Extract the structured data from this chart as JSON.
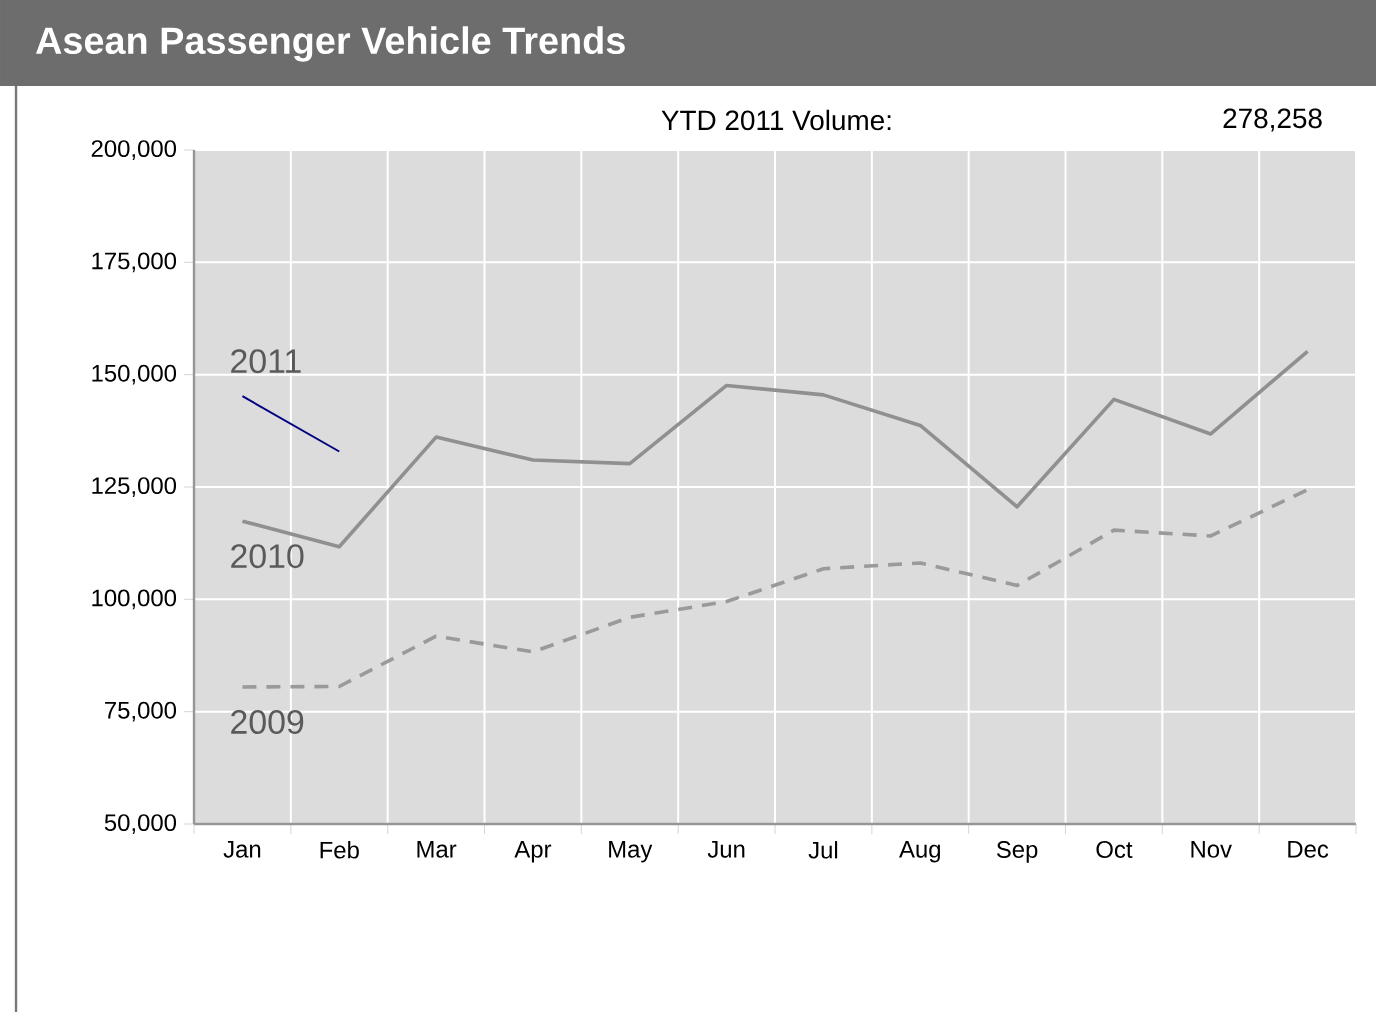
{
  "chart_data": {
    "type": "line",
    "title": "Asean Passenger Vehicle Trends",
    "annotations": [
      "YTD 2011 Volume:",
      "278,258"
    ],
    "categories": [
      "Jan",
      "Feb",
      "Mar",
      "Apr",
      "May",
      "Jun",
      "Jul",
      "Aug",
      "Sep",
      "Oct",
      "Nov",
      "Dec"
    ],
    "series": [
      {
        "name": "2011",
        "color": "#000080",
        "line_style": "solid",
        "values": [
          145200,
          132900,
          null,
          null,
          null,
          null,
          null,
          null,
          null,
          null,
          null,
          null
        ]
      },
      {
        "name": "2010",
        "color": "#909090",
        "line_style": "solid",
        "values": [
          117400,
          111700,
          136100,
          131000,
          130200,
          147600,
          145500,
          138700,
          120600,
          144500,
          136800,
          155200
        ]
      },
      {
        "name": "2009",
        "color": "#9a9a9a",
        "line_style": "dashed",
        "values": [
          80500,
          80600,
          91800,
          88300,
          96000,
          99500,
          106800,
          108100,
          103100,
          115400,
          114100,
          124400
        ]
      }
    ],
    "ylim": [
      50000,
      200000
    ],
    "yticks": [
      {
        "value": 50000,
        "label": "50,000"
      },
      {
        "value": 75000,
        "label": "75,000"
      },
      {
        "value": 100000,
        "label": "100,000"
      },
      {
        "value": 125000,
        "label": "125,000"
      },
      {
        "value": 150000,
        "label": "150,000"
      },
      {
        "value": 175000,
        "label": "175,000"
      },
      {
        "value": 200000,
        "label": "200,000"
      }
    ],
    "grid": true,
    "legend": false,
    "marker": "none"
  }
}
